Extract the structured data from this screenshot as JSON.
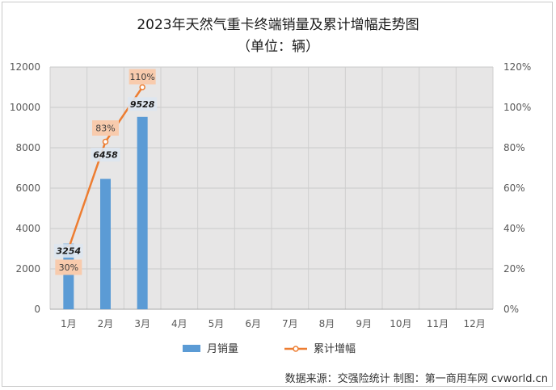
{
  "header": {
    "title": "2023年天然气重卡终端销量及累计增幅走势图",
    "subtitle": "（单位：辆）"
  },
  "footer": {
    "source": "数据来源：交强险统计  制图：第一商用车网 cvworld.cn"
  },
  "chart_data": {
    "type": "bar",
    "categories": [
      "1月",
      "2月",
      "3月",
      "4月",
      "5月",
      "6月",
      "7月",
      "8月",
      "9月",
      "10月",
      "11月",
      "12月"
    ],
    "series": [
      {
        "name": "月销量",
        "kind": "bar",
        "axis": "left",
        "color": "#5b9bd5",
        "values": [
          3254,
          6458,
          9528,
          null,
          null,
          null,
          null,
          null,
          null,
          null,
          null,
          null
        ]
      },
      {
        "name": "累计增幅",
        "kind": "line",
        "axis": "right",
        "color": "#ed7d31",
        "values": [
          30,
          83,
          110,
          null,
          null,
          null,
          null,
          null,
          null,
          null,
          null,
          null
        ]
      }
    ],
    "bar_labels": [
      "3254",
      "6458",
      "9528"
    ],
    "line_labels": [
      "30%",
      "83%",
      "110%"
    ],
    "y_left": {
      "min": 0,
      "max": 12000,
      "ticks": [
        "0",
        "2000",
        "4000",
        "6000",
        "8000",
        "10000",
        "12000"
      ]
    },
    "y_right": {
      "min": 0,
      "max": 120,
      "ticks": [
        "0%",
        "20%",
        "40%",
        "60%",
        "80%",
        "100%",
        "120%"
      ]
    },
    "grid": true,
    "legend_position": "bottom",
    "plot_background": "#e7e6e6"
  }
}
